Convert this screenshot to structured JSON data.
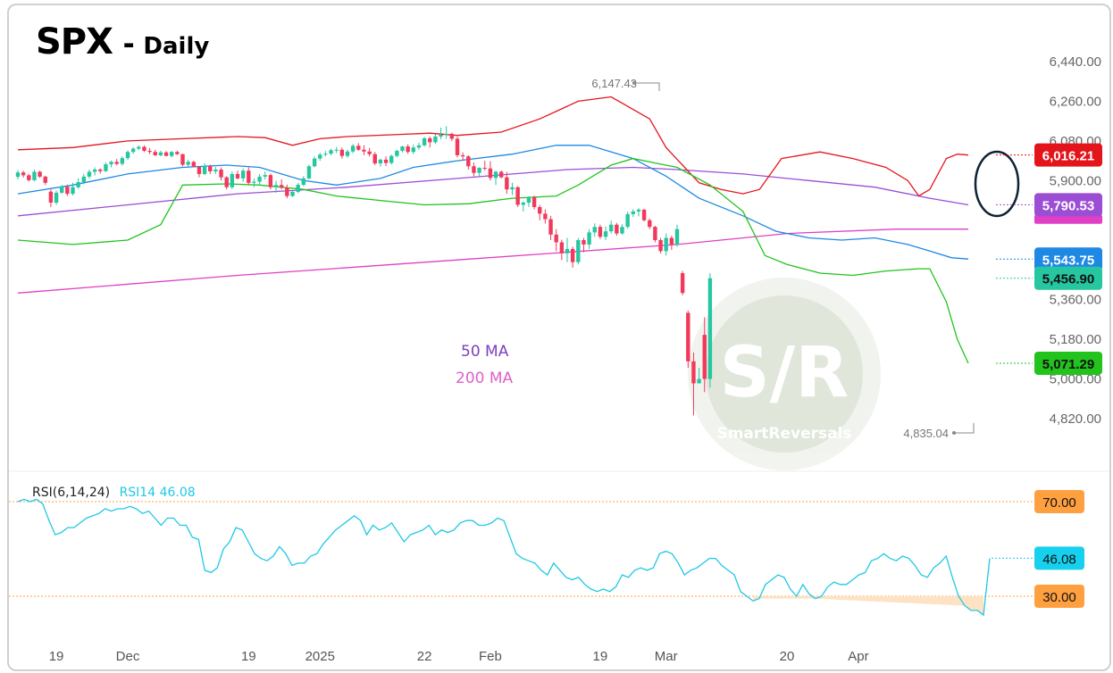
{
  "header": {
    "symbol": "SPX",
    "separator": "-",
    "timeframe": "Daily"
  },
  "ma_labels": {
    "ma50": "50 MA",
    "ma200": "200 MA"
  },
  "rsi_header": {
    "params": "RSI(6,14,24)",
    "value_label": "RSI14 46.08"
  },
  "watermark": {
    "main": "S/R",
    "sub": "SmartReversals"
  },
  "colors": {
    "up": "#26c6a0",
    "down": "#f2395b",
    "bb_upper": "#e4141b",
    "bb_lower": "#22c31d",
    "bb_mid": "#1e88e5",
    "ma50": "#9b4ed4",
    "ma200": "#e03fc6",
    "rsi": "#1ec8e6",
    "rsi_band": "#ffa040"
  },
  "chart_data": {
    "type": "candlestick",
    "title": "SPX - Daily",
    "y_axis": {
      "min": 4700,
      "max": 6480,
      "ticks": [
        4820,
        5000,
        5180,
        5360,
        5540,
        5720,
        5900,
        6080,
        6260,
        6440
      ],
      "tick_labels": [
        "4,820.00",
        "5,000.00",
        "5,180.00",
        "5,360.00",
        "",
        "",
        "5,900.00",
        "6,080.00",
        "6,260.00",
        "6,440.00"
      ]
    },
    "x_axis": {
      "labels": [
        [
          "19",
          7
        ],
        [
          "Dec",
          20
        ],
        [
          "19",
          42
        ],
        [
          "2025",
          55
        ],
        [
          "22",
          74
        ],
        [
          "Feb",
          86
        ],
        [
          "19",
          106
        ],
        [
          "Mar",
          118
        ],
        [
          "20",
          140
        ],
        [
          "Apr",
          153
        ]
      ]
    },
    "candles": [
      [
        5917,
        5948,
        5906,
        5937
      ],
      [
        5937,
        5945,
        5914,
        5924
      ],
      [
        5924,
        5930,
        5896,
        5902
      ],
      [
        5902,
        5950,
        5897,
        5940
      ],
      [
        5940,
        5945,
        5912,
        5918
      ],
      [
        5918,
        5922,
        5880,
        5890
      ],
      [
        5850,
        5860,
        5780,
        5800
      ],
      [
        5800,
        5855,
        5790,
        5845
      ],
      [
        5845,
        5880,
        5840,
        5872
      ],
      [
        5872,
        5881,
        5830,
        5840
      ],
      [
        5840,
        5890,
        5833,
        5870
      ],
      [
        5870,
        5910,
        5862,
        5893
      ],
      [
        5893,
        5930,
        5884,
        5918
      ],
      [
        5918,
        5950,
        5909,
        5940
      ],
      [
        5940,
        5960,
        5923,
        5950
      ],
      [
        5950,
        5956,
        5932,
        5943
      ],
      [
        5943,
        5983,
        5939,
        5974
      ],
      [
        5974,
        5991,
        5960,
        5985
      ],
      [
        5985,
        5998,
        5969,
        5976
      ],
      [
        5976,
        6010,
        5968,
        6002
      ],
      [
        6002,
        6036,
        5994,
        6030
      ],
      [
        6030,
        6052,
        6021,
        6045
      ],
      [
        6045,
        6060,
        6038,
        6053
      ],
      [
        6053,
        6060,
        6030,
        6035
      ],
      [
        6035,
        6048,
        6020,
        6030
      ],
      [
        6030,
        6040,
        6012,
        6015
      ],
      [
        6015,
        6036,
        6010,
        6028
      ],
      [
        6028,
        6034,
        6010,
        6012
      ],
      [
        6012,
        6034,
        6005,
        6030
      ],
      [
        6030,
        6035,
        6016,
        6020
      ],
      [
        6020,
        6022,
        5965,
        5972
      ],
      [
        5972,
        5995,
        5962,
        5985
      ],
      [
        5985,
        5990,
        5960,
        5962
      ],
      [
        5962,
        5966,
        5915,
        5930
      ],
      [
        5930,
        5980,
        5925,
        5965
      ],
      [
        5965,
        5973,
        5930,
        5942
      ],
      [
        5942,
        5962,
        5930,
        5950
      ],
      [
        5950,
        5960,
        5900,
        5915
      ],
      [
        5915,
        5920,
        5860,
        5870
      ],
      [
        5870,
        5942,
        5862,
        5930
      ],
      [
        5930,
        5945,
        5905,
        5910
      ],
      [
        5910,
        5955,
        5895,
        5945
      ],
      [
        5945,
        5960,
        5880,
        5890
      ],
      [
        5890,
        5910,
        5870,
        5895
      ],
      [
        5895,
        5930,
        5880,
        5918
      ],
      [
        5918,
        5942,
        5905,
        5925
      ],
      [
        5925,
        5932,
        5860,
        5870
      ],
      [
        5870,
        5900,
        5845,
        5880
      ],
      [
        5880,
        5906,
        5860,
        5868
      ],
      [
        5868,
        5882,
        5820,
        5830
      ],
      [
        5830,
        5856,
        5826,
        5849
      ],
      [
        5849,
        5890,
        5843,
        5881
      ],
      [
        5881,
        5920,
        5875,
        5910
      ],
      [
        5910,
        5972,
        5905,
        5965
      ],
      [
        5965,
        6010,
        5960,
        6000
      ],
      [
        6000,
        6026,
        5990,
        6018
      ],
      [
        6018,
        6034,
        6010,
        6022
      ],
      [
        6022,
        6045,
        6015,
        6038
      ],
      [
        6038,
        6053,
        6025,
        6040
      ],
      [
        6040,
        6050,
        6000,
        6012
      ],
      [
        6012,
        6040,
        6004,
        6032
      ],
      [
        6032,
        6066,
        6024,
        6058
      ],
      [
        6058,
        6070,
        6035,
        6040
      ],
      [
        6040,
        6060,
        6015,
        6032
      ],
      [
        6032,
        6048,
        6010,
        6020
      ],
      [
        6020,
        6030,
        5970,
        5978
      ],
      [
        5978,
        6000,
        5963,
        5995
      ],
      [
        5995,
        6010,
        5966,
        5980
      ],
      [
        5980,
        6018,
        5973,
        6012
      ],
      [
        6012,
        6040,
        6005,
        6035
      ],
      [
        6035,
        6058,
        6028,
        6055
      ],
      [
        6055,
        6065,
        6022,
        6030
      ],
      [
        6030,
        6064,
        6020,
        6050
      ],
      [
        6050,
        6072,
        6040,
        6060
      ],
      [
        6060,
        6098,
        6055,
        6092
      ],
      [
        6092,
        6100,
        6050,
        6074
      ],
      [
        6074,
        6110,
        6066,
        6100
      ],
      [
        6100,
        6140,
        6088,
        6108
      ],
      [
        6108,
        6147,
        6090,
        6112
      ],
      [
        6112,
        6118,
        6080,
        6090
      ],
      [
        6090,
        6100,
        6005,
        6015
      ],
      [
        6015,
        6028,
        5990,
        6010
      ],
      [
        6010,
        6015,
        5950,
        5965
      ],
      [
        5965,
        5982,
        5920,
        5935
      ],
      [
        5935,
        5960,
        5920,
        5958
      ],
      [
        5958,
        5990,
        5945,
        5955
      ],
      [
        5955,
        5988,
        5900,
        5912
      ],
      [
        5912,
        5945,
        5880,
        5940
      ],
      [
        5940,
        5946,
        5910,
        5915
      ],
      [
        5915,
        5940,
        5840,
        5860
      ],
      [
        5860,
        5890,
        5835,
        5870
      ],
      [
        5870,
        5875,
        5780,
        5790
      ],
      [
        5790,
        5806,
        5760,
        5800
      ],
      [
        5800,
        5830,
        5780,
        5825
      ],
      [
        5825,
        5832,
        5770,
        5780
      ],
      [
        5780,
        5790,
        5720,
        5750
      ],
      [
        5750,
        5770,
        5705,
        5725
      ],
      [
        5725,
        5740,
        5630,
        5655
      ],
      [
        5655,
        5680,
        5580,
        5620
      ],
      [
        5620,
        5632,
        5540,
        5570
      ],
      [
        5570,
        5640,
        5530,
        5590
      ],
      [
        5590,
        5600,
        5505,
        5530
      ],
      [
        5530,
        5640,
        5520,
        5630
      ],
      [
        5630,
        5640,
        5575,
        5610
      ],
      [
        5610,
        5680,
        5590,
        5665
      ],
      [
        5665,
        5706,
        5645,
        5690
      ],
      [
        5690,
        5700,
        5635,
        5645
      ],
      [
        5645,
        5692,
        5630,
        5670
      ],
      [
        5670,
        5718,
        5660,
        5700
      ],
      [
        5700,
        5708,
        5650,
        5660
      ],
      [
        5660,
        5702,
        5655,
        5690
      ],
      [
        5690,
        5760,
        5682,
        5748
      ],
      [
        5748,
        5770,
        5735,
        5760
      ],
      [
        5760,
        5775,
        5738,
        5768
      ],
      [
        5768,
        5772,
        5715,
        5720
      ],
      [
        5720,
        5728,
        5680,
        5690
      ],
      [
        5690,
        5695,
        5620,
        5630
      ],
      [
        5630,
        5640,
        5570,
        5580
      ],
      [
        5580,
        5660,
        5560,
        5640
      ],
      [
        5640,
        5650,
        5585,
        5610
      ],
      [
        5610,
        5700,
        5600,
        5680
      ],
      [
        5480,
        5490,
        5380,
        5390
      ],
      [
        5300,
        5310,
        5050,
        5080
      ],
      [
        5080,
        5120,
        4835,
        4980
      ],
      [
        4980,
        5050,
        4980,
        5000
      ],
      [
        5200,
        5280,
        4940,
        5000
      ],
      [
        5000,
        5480,
        4960,
        5457
      ]
    ],
    "bb_upper": [
      [
        0,
        6040
      ],
      [
        10,
        6050
      ],
      [
        20,
        6080
      ],
      [
        30,
        6090
      ],
      [
        40,
        6100
      ],
      [
        45,
        6095
      ],
      [
        50,
        6060
      ],
      [
        55,
        6090
      ],
      [
        60,
        6100
      ],
      [
        70,
        6110
      ],
      [
        75,
        6115
      ],
      [
        80,
        6105
      ],
      [
        88,
        6120
      ],
      [
        95,
        6180
      ],
      [
        102,
        6260
      ],
      [
        108,
        6280
      ],
      [
        115,
        6180
      ],
      [
        118,
        6050
      ],
      [
        124,
        5890
      ],
      [
        128,
        5860
      ],
      [
        132,
        5840
      ],
      [
        135,
        5860
      ],
      [
        139,
        6000
      ],
      [
        146,
        6030
      ],
      [
        152,
        6000
      ],
      [
        158,
        5960
      ],
      [
        162,
        5900
      ],
      [
        164,
        5830
      ],
      [
        166,
        5860
      ],
      [
        169,
        6000
      ],
      [
        171,
        6020
      ],
      [
        173,
        6016
      ]
    ],
    "bb_mid": [
      [
        0,
        5840
      ],
      [
        10,
        5880
      ],
      [
        20,
        5930
      ],
      [
        30,
        5960
      ],
      [
        38,
        5970
      ],
      [
        44,
        5960
      ],
      [
        52,
        5900
      ],
      [
        58,
        5880
      ],
      [
        66,
        5910
      ],
      [
        72,
        5960
      ],
      [
        80,
        5990
      ],
      [
        90,
        6020
      ],
      [
        98,
        6060
      ],
      [
        104,
        6060
      ],
      [
        112,
        6000
      ],
      [
        118,
        5920
      ],
      [
        124,
        5820
      ],
      [
        132,
        5740
      ],
      [
        138,
        5670
      ],
      [
        144,
        5640
      ],
      [
        150,
        5630
      ],
      [
        156,
        5640
      ],
      [
        162,
        5610
      ],
      [
        166,
        5580
      ],
      [
        170,
        5550
      ],
      [
        173,
        5544
      ]
    ],
    "bb_lower": [
      [
        0,
        5630
      ],
      [
        10,
        5610
      ],
      [
        20,
        5630
      ],
      [
        26,
        5700
      ],
      [
        30,
        5880
      ],
      [
        38,
        5885
      ],
      [
        44,
        5880
      ],
      [
        52,
        5860
      ],
      [
        58,
        5830
      ],
      [
        66,
        5810
      ],
      [
        74,
        5790
      ],
      [
        82,
        5795
      ],
      [
        90,
        5820
      ],
      [
        98,
        5830
      ],
      [
        102,
        5880
      ],
      [
        108,
        5970
      ],
      [
        112,
        6000
      ],
      [
        116,
        5980
      ],
      [
        120,
        5960
      ],
      [
        126,
        5880
      ],
      [
        132,
        5760
      ],
      [
        136,
        5560
      ],
      [
        140,
        5520
      ],
      [
        146,
        5480
      ],
      [
        152,
        5470
      ],
      [
        158,
        5490
      ],
      [
        164,
        5500
      ],
      [
        166,
        5500
      ],
      [
        169,
        5350
      ],
      [
        171,
        5180
      ],
      [
        173,
        5071
      ]
    ],
    "ma50": [
      [
        0,
        5740
      ],
      [
        20,
        5790
      ],
      [
        40,
        5840
      ],
      [
        60,
        5870
      ],
      [
        80,
        5910
      ],
      [
        100,
        5950
      ],
      [
        112,
        5960
      ],
      [
        120,
        5950
      ],
      [
        132,
        5930
      ],
      [
        144,
        5900
      ],
      [
        156,
        5870
      ],
      [
        166,
        5820
      ],
      [
        173,
        5790
      ]
    ],
    "ma200": [
      [
        0,
        5390
      ],
      [
        40,
        5470
      ],
      [
        80,
        5540
      ],
      [
        120,
        5610
      ],
      [
        140,
        5660
      ],
      [
        160,
        5680
      ],
      [
        173,
        5680
      ]
    ],
    "last_values": {
      "bb_upper": "6,016.21",
      "ma50": "5,790.53",
      "bb_mid": "5,543.75",
      "close": "5,456.90",
      "bb_lower": "5,071.29"
    },
    "annotations": {
      "high": "6,147.43",
      "low": "4,835.04"
    },
    "rsi": {
      "name": "RSI14",
      "levels": [
        70,
        30
      ],
      "level_labels": [
        "70.00",
        "30.00"
      ],
      "last_label": "46.08",
      "values": [
        70,
        71,
        70,
        71,
        69,
        62,
        56,
        57,
        59,
        59,
        61,
        63,
        64,
        65,
        67,
        66,
        67,
        67,
        68,
        67,
        65,
        66,
        63,
        60,
        63,
        63,
        60,
        60,
        55,
        54,
        41,
        40,
        42,
        50,
        53,
        59,
        58,
        53,
        48,
        46,
        45,
        47,
        51,
        48,
        43,
        44,
        44,
        47,
        48,
        52,
        55,
        58,
        60,
        62,
        64,
        62,
        56,
        60,
        58,
        59,
        61,
        57,
        53,
        56,
        57,
        58,
        60,
        56,
        58,
        57,
        58,
        61,
        62,
        62,
        60,
        60,
        61,
        63,
        62,
        55,
        48,
        46,
        45,
        44,
        41,
        39,
        44,
        41,
        38,
        37,
        38,
        35,
        33,
        32,
        33,
        32,
        34,
        39,
        38,
        41,
        42,
        41,
        42,
        48,
        49,
        48,
        44,
        39,
        41,
        42,
        44,
        46,
        46,
        43,
        41,
        39,
        32,
        30,
        28,
        29,
        35,
        37,
        39,
        38,
        33,
        30,
        35,
        31,
        29,
        30,
        34,
        36,
        35,
        35,
        37,
        39,
        40,
        45,
        46,
        48,
        46,
        45,
        47,
        46,
        43,
        39,
        38,
        42,
        44,
        47,
        38,
        30,
        26,
        24,
        24,
        22,
        46
      ]
    }
  }
}
